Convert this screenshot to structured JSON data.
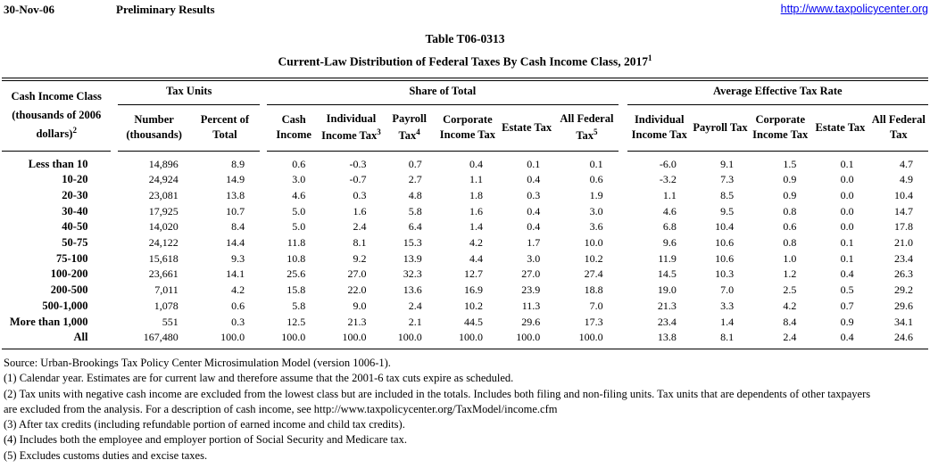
{
  "header": {
    "date": "30-Nov-06",
    "status": "Preliminary Results",
    "url": "http://www.taxpolicycenter.org"
  },
  "title": {
    "table_number": "Table T06-0313",
    "subtitle": "Current-Law Distribution of Federal Taxes By Cash Income Class, 2017",
    "subtitle_sup": "1"
  },
  "table": {
    "row_header": {
      "label": "Cash Income Class (thousands of 2006 dollars)",
      "sup": "2"
    },
    "groups": [
      {
        "label": "Tax Units"
      },
      {
        "label": "Share of Total"
      },
      {
        "label": "Average Effective Tax Rate"
      }
    ],
    "columns": [
      {
        "label": "Number (thousands)",
        "sup": ""
      },
      {
        "label": "Percent of Total",
        "sup": ""
      },
      {
        "label": "Cash Income",
        "sup": ""
      },
      {
        "label": "Individual Income Tax",
        "sup": "3"
      },
      {
        "label": "Payroll Tax",
        "sup": "4"
      },
      {
        "label": "Corporate Income Tax",
        "sup": ""
      },
      {
        "label": "Estate Tax",
        "sup": ""
      },
      {
        "label": "All Federal Tax",
        "sup": "5"
      },
      {
        "label": "Individual Income Tax",
        "sup": ""
      },
      {
        "label": "Payroll Tax",
        "sup": ""
      },
      {
        "label": "Corporate Income Tax",
        "sup": ""
      },
      {
        "label": "Estate Tax",
        "sup": ""
      },
      {
        "label": "All Federal Tax",
        "sup": ""
      }
    ],
    "rows": [
      {
        "class": "Less than 10",
        "values": [
          "14,896",
          "8.9",
          "0.6",
          "-0.3",
          "0.7",
          "0.4",
          "0.1",
          "0.1",
          "-6.0",
          "9.1",
          "1.5",
          "0.1",
          "4.7"
        ]
      },
      {
        "class": "10-20",
        "values": [
          "24,924",
          "14.9",
          "3.0",
          "-0.7",
          "2.7",
          "1.1",
          "0.4",
          "0.6",
          "-3.2",
          "7.3",
          "0.9",
          "0.0",
          "4.9"
        ]
      },
      {
        "class": "20-30",
        "values": [
          "23,081",
          "13.8",
          "4.6",
          "0.3",
          "4.8",
          "1.8",
          "0.3",
          "1.9",
          "1.1",
          "8.5",
          "0.9",
          "0.0",
          "10.4"
        ]
      },
      {
        "class": "30-40",
        "values": [
          "17,925",
          "10.7",
          "5.0",
          "1.6",
          "5.8",
          "1.6",
          "0.4",
          "3.0",
          "4.6",
          "9.5",
          "0.8",
          "0.0",
          "14.7"
        ]
      },
      {
        "class": "40-50",
        "values": [
          "14,020",
          "8.4",
          "5.0",
          "2.4",
          "6.4",
          "1.4",
          "0.4",
          "3.6",
          "6.8",
          "10.4",
          "0.6",
          "0.0",
          "17.8"
        ]
      },
      {
        "class": "50-75",
        "values": [
          "24,122",
          "14.4",
          "11.8",
          "8.1",
          "15.3",
          "4.2",
          "1.7",
          "10.0",
          "9.6",
          "10.6",
          "0.8",
          "0.1",
          "21.0"
        ]
      },
      {
        "class": "75-100",
        "values": [
          "15,618",
          "9.3",
          "10.8",
          "9.2",
          "13.9",
          "4.4",
          "3.0",
          "10.2",
          "11.9",
          "10.6",
          "1.0",
          "0.1",
          "23.4"
        ]
      },
      {
        "class": "100-200",
        "values": [
          "23,661",
          "14.1",
          "25.6",
          "27.0",
          "32.3",
          "12.7",
          "27.0",
          "27.4",
          "14.5",
          "10.3",
          "1.2",
          "0.4",
          "26.3"
        ]
      },
      {
        "class": "200-500",
        "values": [
          "7,011",
          "4.2",
          "15.8",
          "22.0",
          "13.6",
          "16.9",
          "23.9",
          "18.8",
          "19.0",
          "7.0",
          "2.5",
          "0.5",
          "29.2"
        ]
      },
      {
        "class": "500-1,000",
        "values": [
          "1,078",
          "0.6",
          "5.8",
          "9.0",
          "2.4",
          "10.2",
          "11.3",
          "7.0",
          "21.3",
          "3.3",
          "4.2",
          "0.7",
          "29.6"
        ]
      },
      {
        "class": "More than 1,000",
        "values": [
          "551",
          "0.3",
          "12.5",
          "21.3",
          "2.1",
          "44.5",
          "29.6",
          "17.3",
          "23.4",
          "1.4",
          "8.4",
          "0.9",
          "34.1"
        ]
      },
      {
        "class": "All",
        "values": [
          "167,480",
          "100.0",
          "100.0",
          "100.0",
          "100.0",
          "100.0",
          "100.0",
          "100.0",
          "13.8",
          "8.1",
          "2.4",
          "0.4",
          "24.6"
        ]
      }
    ]
  },
  "notes": {
    "source": "Source: Urban-Brookings Tax Policy Center Microsimulation Model (version 1006-1).",
    "lines": [
      "(1) Calendar year.  Estimates are for current law and therefore assume that the 2001-6 tax cuts expire as scheduled.",
      "(2) Tax units with negative cash income are excluded from the lowest class but are included in the totals. Includes both filing and non-filing units. Tax units that are dependents of other taxpayers",
      "are excluded from the analysis. For a description of cash income, see http://www.taxpolicycenter.org/TaxModel/income.cfm",
      "(3) After tax credits (including refundable portion of earned income and child tax credits).",
      "(4) Includes both the employee and employer portion of Social Security and Medicare tax.",
      "(5) Excludes customs duties and excise taxes."
    ]
  },
  "colors": {
    "link": "#0000EE",
    "text": "#000000",
    "background": "#FFFFFF"
  }
}
